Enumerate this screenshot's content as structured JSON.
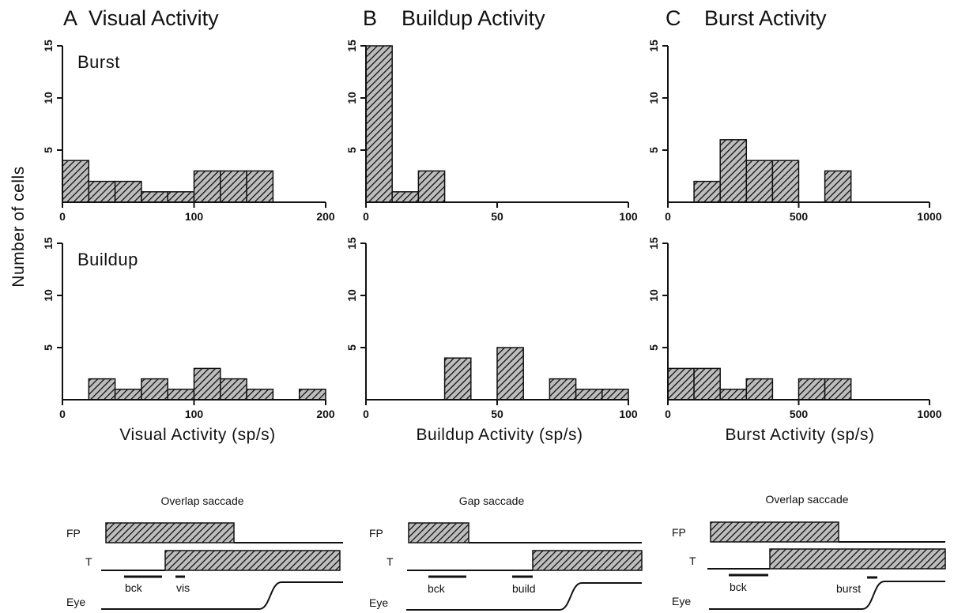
{
  "columns": [
    {
      "letter": "A",
      "title": "Visual Activity"
    },
    {
      "letter": "B",
      "title": "Buildup Activity"
    },
    {
      "letter": "C",
      "title": "Burst Activity"
    }
  ],
  "ylabel": "Number of cells",
  "chart_data": [
    {
      "type": "bar",
      "column": "A",
      "row_label": "Burst",
      "xlabel": "",
      "xlim": [
        0,
        200
      ],
      "ylim": [
        0,
        15
      ],
      "xticks": [
        0,
        100,
        200
      ],
      "yticks": [
        5,
        10,
        15
      ],
      "bin_width": 20,
      "bins": [
        0,
        20,
        40,
        60,
        80,
        100,
        120,
        140,
        160,
        180
      ],
      "values": [
        4,
        2,
        2,
        1,
        1,
        3,
        3,
        3,
        0,
        0
      ],
      "colors": {
        "fill": "#555555",
        "hatch": "#111111"
      }
    },
    {
      "type": "bar",
      "column": "B",
      "row_label": "",
      "xlabel": "",
      "xlim": [
        0,
        100
      ],
      "ylim": [
        0,
        15
      ],
      "xticks": [
        0,
        50,
        100
      ],
      "yticks": [
        5,
        10,
        15
      ],
      "bin_width": 10,
      "bins": [
        0,
        10,
        20,
        30,
        40,
        50,
        60,
        70,
        80,
        90
      ],
      "values": [
        15,
        1,
        3,
        0,
        0,
        0,
        0,
        0,
        0,
        0
      ]
    },
    {
      "type": "bar",
      "column": "C",
      "row_label": "",
      "xlabel": "",
      "xlim": [
        0,
        1000
      ],
      "ylim": [
        0,
        15
      ],
      "xticks": [
        0,
        500,
        1000
      ],
      "yticks": [
        5,
        10,
        15
      ],
      "bin_width": 100,
      "bins": [
        0,
        100,
        200,
        300,
        400,
        500,
        600,
        700,
        800,
        900
      ],
      "values": [
        0,
        2,
        6,
        4,
        4,
        0,
        3,
        0,
        0,
        0
      ]
    },
    {
      "type": "bar",
      "column": "A",
      "row_label": "Buildup",
      "xlabel": "Visual Activity (sp/s)",
      "xlim": [
        0,
        200
      ],
      "ylim": [
        0,
        15
      ],
      "xticks": [
        0,
        100,
        200
      ],
      "yticks": [
        5,
        10,
        15
      ],
      "bin_width": 20,
      "bins": [
        0,
        20,
        40,
        60,
        80,
        100,
        120,
        140,
        160,
        180
      ],
      "values": [
        0,
        2,
        1,
        2,
        1,
        3,
        2,
        1,
        0,
        1
      ]
    },
    {
      "type": "bar",
      "column": "B",
      "row_label": "",
      "xlabel": "Buildup Activity (sp/s)",
      "xlim": [
        0,
        100
      ],
      "ylim": [
        0,
        15
      ],
      "xticks": [
        0,
        50,
        100
      ],
      "yticks": [
        5,
        10,
        15
      ],
      "bin_width": 10,
      "bins": [
        0,
        10,
        20,
        30,
        40,
        50,
        60,
        70,
        80,
        90
      ],
      "values": [
        0,
        0,
        0,
        4,
        0,
        5,
        0,
        2,
        1,
        1
      ]
    },
    {
      "type": "bar",
      "column": "C",
      "row_label": "",
      "xlabel": "Burst Activity (sp/s)",
      "xlim": [
        0,
        1000
      ],
      "ylim": [
        0,
        15
      ],
      "xticks": [
        0,
        500,
        1000
      ],
      "yticks": [
        5,
        10,
        15
      ],
      "bin_width": 100,
      "bins": [
        0,
        100,
        200,
        300,
        400,
        500,
        600,
        700,
        800,
        900
      ],
      "values": [
        3,
        3,
        1,
        2,
        0,
        2,
        2,
        0,
        0,
        0
      ]
    }
  ],
  "diagrams": [
    {
      "title": "Overlap saccade",
      "fp": "FP",
      "t": "T",
      "eye": "Eye",
      "window1": "bck",
      "window2": "vis"
    },
    {
      "title": "Gap saccade",
      "fp": "FP",
      "t": "T",
      "eye": "Eye",
      "window1": "bck",
      "window2": "build"
    },
    {
      "title": "Overlap saccade",
      "fp": "FP",
      "t": "T",
      "eye": "Eye",
      "window1": "bck",
      "window2": "burst"
    }
  ]
}
